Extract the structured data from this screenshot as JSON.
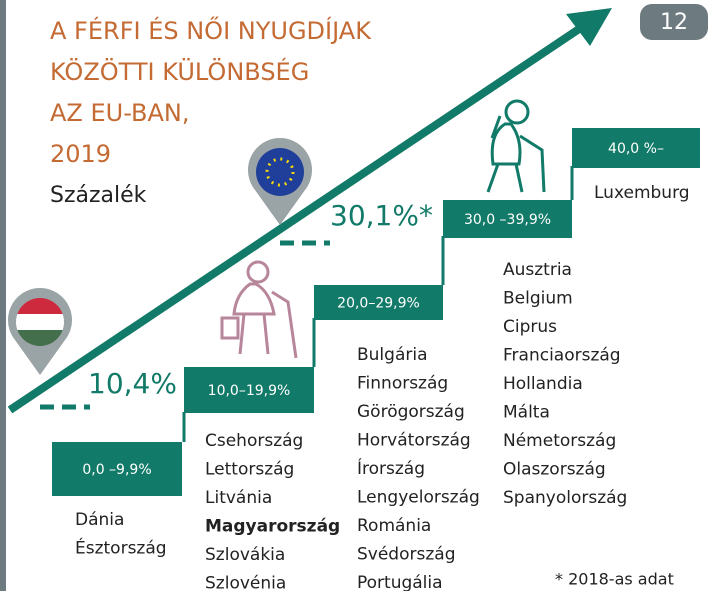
{
  "page_number": "12",
  "title": [
    "A FÉRFI ÉS NŐI NYUGDÍJAK",
    "KÖZÖTTI  KÜLÖNBSÉG",
    "AZ EU-BAN,",
    "2019"
  ],
  "subtitle": "Százalék",
  "markers": [
    {
      "label": "10,4%"
    },
    {
      "label": "30,1%*"
    }
  ],
  "steps": [
    {
      "label": "0,0 –9,9%",
      "countries": [
        "Dánia",
        "Észtország"
      ]
    },
    {
      "label": "10,0–19,9%",
      "countries": [
        "Csehország",
        "Lettország",
        "Litvánia",
        "Magyarország",
        "Szlovákia",
        "Szlovénia"
      ],
      "highlight": "Magyarország"
    },
    {
      "label": "20,0–29,9%",
      "countries": [
        "Bulgária",
        "Finnország",
        "Görögország",
        "Horvátország",
        "Írország",
        "Lengyelország",
        "Románia",
        "Svédország",
        "Portugália"
      ]
    },
    {
      "label": "30,0 –39,9%",
      "countries": [
        "Ausztria",
        "Belgium",
        "Ciprus",
        "Franciaország",
        "Hollandia",
        "Málta",
        "Németország",
        "Olaszország",
        "Spanyolország"
      ]
    },
    {
      "label": "40,0 %–",
      "countries": [
        "Luxemburg"
      ]
    }
  ],
  "footnote": "* 2018-as adat"
}
